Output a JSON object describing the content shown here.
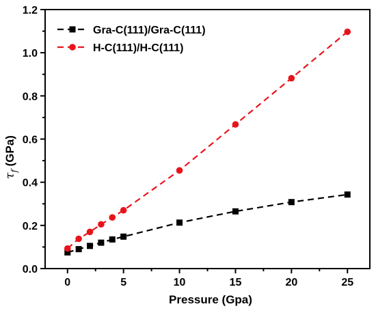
{
  "chart_data": {
    "type": "line",
    "title": "",
    "xlabel": "Pressure (Gpa)",
    "ylabel": {
      "symbol": "τ",
      "subscript": "f",
      "rest": " (GPa)"
    },
    "xlim": [
      -2,
      27
    ],
    "ylim": [
      0,
      1.2
    ],
    "x_ticks": [
      0,
      5,
      10,
      15,
      20,
      25
    ],
    "y_ticks": [
      0.0,
      0.2,
      0.4,
      0.6,
      0.8,
      1.0,
      1.2
    ],
    "y_tick_labels": [
      "0.0",
      "0.2",
      "0.4",
      "0.6",
      "0.8",
      "1.0",
      "1.2"
    ],
    "x_tick_labels": [
      "0",
      "5",
      "10",
      "15",
      "20",
      "25"
    ],
    "grid": false,
    "legend_position": "top-left",
    "series": [
      {
        "name": "Gra-C(111)/Gra-C(111)",
        "color": "#000000",
        "marker": "square",
        "line_style": "dashed",
        "x": [
          0,
          1,
          2,
          3,
          4,
          5,
          10,
          15,
          20,
          25
        ],
        "y": [
          0.075,
          0.09,
          0.105,
          0.12,
          0.135,
          0.148,
          0.213,
          0.265,
          0.308,
          0.343
        ]
      },
      {
        "name": "H-C(111)/H-C(111)",
        "color": "#e8141b",
        "marker": "circle",
        "line_style": "dashed",
        "x": [
          0,
          1,
          2,
          3,
          4,
          5,
          10,
          15,
          20,
          25
        ],
        "y": [
          0.093,
          0.138,
          0.17,
          0.205,
          0.237,
          0.27,
          0.455,
          0.668,
          0.882,
          1.097
        ]
      }
    ]
  }
}
